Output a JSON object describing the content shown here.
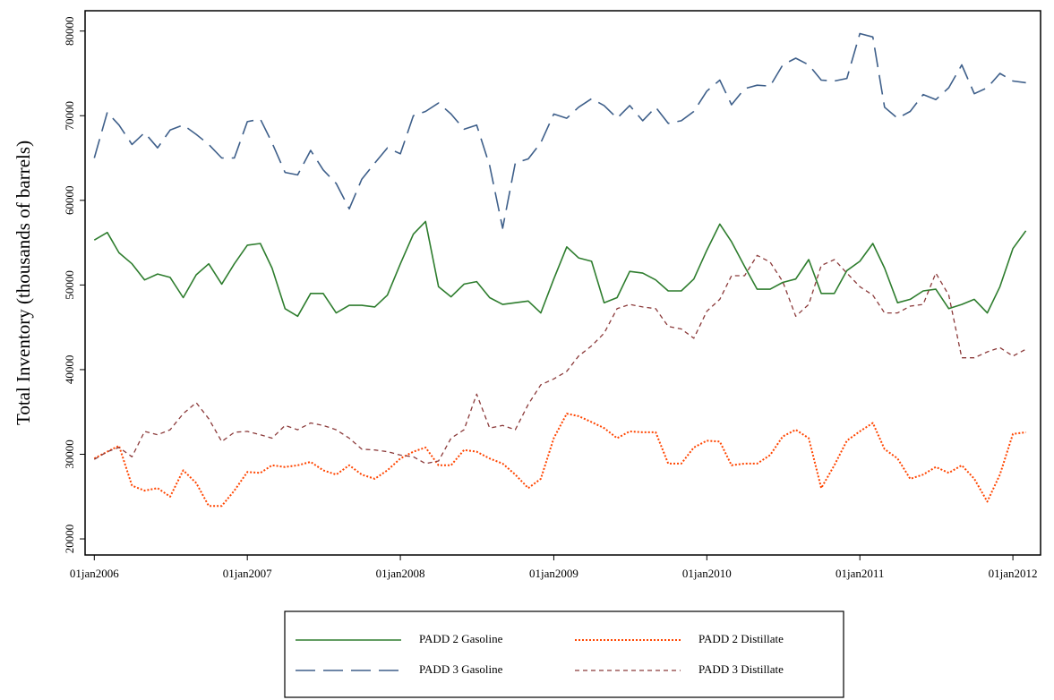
{
  "chart_data": {
    "type": "line",
    "ylabel": "Total Inventory (thousands of barrels)",
    "x": [
      "2006-01-01",
      "2006-02-01",
      "2006-03-01",
      "2006-04-01",
      "2006-05-01",
      "2006-06-01",
      "2006-07-01",
      "2006-08-01",
      "2006-09-01",
      "2006-10-01",
      "2006-11-01",
      "2006-12-01",
      "2007-01-01",
      "2007-02-01",
      "2007-03-01",
      "2007-04-01",
      "2007-05-01",
      "2007-06-01",
      "2007-07-01",
      "2007-08-01",
      "2007-09-01",
      "2007-10-01",
      "2007-11-01",
      "2007-12-01",
      "2008-01-01",
      "2008-02-01",
      "2008-03-01",
      "2008-04-01",
      "2008-05-01",
      "2008-06-01",
      "2008-07-01",
      "2008-08-01",
      "2008-09-01",
      "2008-10-01",
      "2008-11-01",
      "2008-12-01",
      "2009-01-01",
      "2009-02-01",
      "2009-03-01",
      "2009-04-01",
      "2009-05-01",
      "2009-06-01",
      "2009-07-01",
      "2009-08-01",
      "2009-09-01",
      "2009-10-01",
      "2009-11-01",
      "2009-12-01",
      "2010-01-01",
      "2010-02-01",
      "2010-03-01",
      "2010-04-01",
      "2010-05-01",
      "2010-06-01",
      "2010-07-01",
      "2010-08-01",
      "2010-09-01",
      "2010-10-01",
      "2010-11-01",
      "2010-12-01",
      "2011-01-01",
      "2011-02-01",
      "2011-03-01",
      "2011-04-01",
      "2011-05-01",
      "2011-06-01",
      "2011-07-01",
      "2011-08-01",
      "2011-09-01",
      "2011-10-01",
      "2011-11-01",
      "2011-12-01",
      "2012-01-01",
      "2012-02-01"
    ],
    "xlim": [
      "2005-12-10",
      "2012-03-07"
    ],
    "xticks": [
      {
        "value": "2006-01-01",
        "label": "01jan2006"
      },
      {
        "value": "2007-01-01",
        "label": "01jan2007"
      },
      {
        "value": "2008-01-01",
        "label": "01jan2008"
      },
      {
        "value": "2009-01-01",
        "label": "01jan2009"
      },
      {
        "value": "2010-01-01",
        "label": "01jan2010"
      },
      {
        "value": "2011-01-01",
        "label": "01jan2011"
      },
      {
        "value": "2012-01-01",
        "label": "01jan2012"
      }
    ],
    "ylim": [
      18100,
      82400
    ],
    "yticks": [
      20000,
      30000,
      40000,
      50000,
      60000,
      70000,
      80000
    ],
    "series": [
      {
        "name": "PADD 2 Gasoline",
        "color": "#2e7d2e",
        "dash": "solid",
        "values": [
          55300,
          56200,
          53800,
          52500,
          50600,
          51300,
          50900,
          48500,
          51200,
          52500,
          50100,
          52500,
          54700,
          54900,
          52000,
          47200,
          46300,
          49000,
          49000,
          46700,
          47600,
          47600,
          47400,
          48800,
          52500,
          56000,
          57500,
          49800,
          48600,
          50100,
          50400,
          48500,
          47700,
          47900,
          48100,
          46700,
          50700,
          54500,
          53200,
          52800,
          47900,
          48500,
          51600,
          51400,
          50600,
          49300,
          49300,
          50700,
          54100,
          57200,
          55100,
          52200,
          49500,
          49500,
          50300,
          50700,
          53000,
          49000,
          49000,
          51700,
          52800,
          54900,
          52000,
          47900,
          48300,
          49300,
          49500,
          47200,
          47700,
          48300,
          46700,
          49800,
          54300,
          56400
        ]
      },
      {
        "name": "PADD 2 Distillate",
        "color": "#ff4500",
        "dash": "dotted",
        "values": [
          29500,
          30300,
          31000,
          26300,
          25700,
          26000,
          25000,
          28100,
          26600,
          23900,
          23900,
          25700,
          27900,
          27800,
          28700,
          28500,
          28700,
          29100,
          28100,
          27600,
          28700,
          27600,
          27100,
          28100,
          29500,
          30300,
          30800,
          28700,
          28700,
          30500,
          30300,
          29500,
          28900,
          27600,
          26000,
          27100,
          31900,
          34800,
          34500,
          33800,
          33100,
          31900,
          32700,
          32600,
          32600,
          28900,
          28900,
          30800,
          31600,
          31500,
          28700,
          28900,
          28900,
          29900,
          32100,
          32900,
          31900,
          26000,
          28700,
          31600,
          32700,
          33700,
          30600,
          29500,
          27100,
          27600,
          28500,
          27800,
          28700,
          27100,
          24400,
          27600,
          32400,
          32600
        ]
      },
      {
        "name": "PADD 3 Gasoline",
        "color": "#3e5f8a",
        "dash": "long-dash",
        "values": [
          65000,
          70400,
          68900,
          66600,
          68000,
          66200,
          68300,
          68900,
          67800,
          66600,
          65000,
          65000,
          69300,
          69600,
          66800,
          63300,
          63000,
          65900,
          63600,
          62000,
          59000,
          62500,
          64400,
          66200,
          65500,
          70000,
          70500,
          71500,
          70200,
          68400,
          68900,
          64100,
          56700,
          64400,
          64900,
          66800,
          70200,
          69700,
          71000,
          72000,
          71200,
          69700,
          71200,
          69400,
          71000,
          69100,
          69400,
          70500,
          72900,
          74200,
          71300,
          73200,
          73600,
          73500,
          76000,
          76800,
          76000,
          74200,
          74100,
          74400,
          79700,
          79300,
          71000,
          69700,
          70500,
          72500,
          71900,
          73300,
          76000,
          72600,
          73300,
          75000,
          74100,
          73900
        ]
      },
      {
        "name": "PADD 3 Distillate",
        "color": "#8b3a3a",
        "dash": "short-dash",
        "values": [
          29400,
          30300,
          30800,
          29700,
          32700,
          32300,
          32900,
          34800,
          36100,
          34200,
          31500,
          32600,
          32700,
          32300,
          31900,
          33400,
          32900,
          33700,
          33400,
          32900,
          31900,
          30600,
          30500,
          30300,
          29900,
          29700,
          28900,
          29200,
          31900,
          32900,
          37100,
          33100,
          33400,
          32900,
          35900,
          38200,
          38900,
          39800,
          41600,
          42800,
          44300,
          47200,
          47700,
          47400,
          47200,
          45100,
          44800,
          43700,
          46900,
          48300,
          51100,
          51100,
          53500,
          52700,
          50400,
          46300,
          47700,
          52300,
          53000,
          51400,
          49800,
          48800,
          46700,
          46700,
          47500,
          47700,
          51400,
          48800,
          41400,
          41400,
          42100,
          42600,
          41600,
          42400
        ]
      }
    ]
  }
}
